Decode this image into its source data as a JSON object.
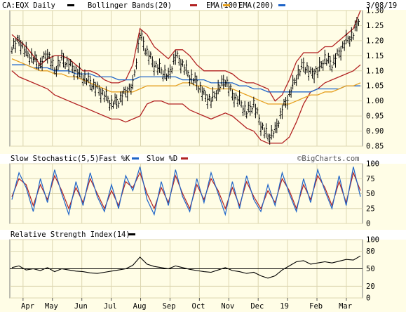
{
  "chart_data": [
    {
      "type": "ohlc",
      "title": "CA:EQX Daily",
      "date_label": "3/08/19",
      "legend": [
        {
          "label": "Bollinger Bands(20)",
          "color": "#b22222"
        },
        {
          "label": "EMA(100)",
          "color": "#e6a020"
        },
        {
          "label": "EMA(200)",
          "color": "#1e64c8"
        }
      ],
      "ylim": [
        0.85,
        1.3
      ],
      "y_ticks": [
        "1.30",
        "1.25",
        "1.20",
        "1.15",
        "1.10",
        "1.05",
        "1.00",
        "0.95",
        "0.90",
        "0.85"
      ],
      "x_tick_labels": [
        "Apr",
        "May",
        "Jun",
        "Jul",
        "Aug",
        "Sep",
        "Oct",
        "Nov",
        "Dec",
        "19",
        "Feb",
        "Mar"
      ],
      "close_series": [
        1.18,
        1.2,
        1.16,
        1.14,
        1.12,
        1.16,
        1.1,
        1.14,
        1.12,
        1.1,
        1.08,
        1.06,
        1.04,
        1.02,
        0.99,
        1.0,
        1.03,
        1.05,
        1.22,
        1.16,
        1.12,
        1.1,
        1.08,
        1.15,
        1.12,
        1.08,
        1.06,
        1.02,
        1.0,
        1.04,
        1.07,
        1.02,
        1.0,
        0.96,
        0.99,
        0.92,
        0.88,
        0.9,
        0.97,
        1.02,
        1.08,
        1.12,
        1.09,
        1.1,
        1.14,
        1.12,
        1.16,
        1.2,
        1.22,
        1.29
      ],
      "bb_upper": [
        1.22,
        1.2,
        1.18,
        1.15,
        1.12,
        1.14,
        1.15,
        1.15,
        1.14,
        1.12,
        1.1,
        1.1,
        1.09,
        1.07,
        1.06,
        1.06,
        1.07,
        1.12,
        1.24,
        1.22,
        1.18,
        1.16,
        1.14,
        1.17,
        1.17,
        1.15,
        1.12,
        1.1,
        1.1,
        1.1,
        1.1,
        1.09,
        1.07,
        1.06,
        1.06,
        1.05,
        1.04,
        1.0,
        1.02,
        1.07,
        1.13,
        1.16,
        1.16,
        1.16,
        1.18,
        1.18,
        1.2,
        1.22,
        1.24,
        1.3
      ],
      "bb_lower": [
        1.1,
        1.08,
        1.07,
        1.06,
        1.05,
        1.04,
        1.02,
        1.01,
        1.0,
        0.99,
        0.98,
        0.97,
        0.96,
        0.95,
        0.94,
        0.94,
        0.93,
        0.94,
        0.95,
        0.99,
        1.0,
        1.0,
        0.99,
        0.99,
        0.99,
        0.97,
        0.96,
        0.95,
        0.94,
        0.95,
        0.96,
        0.95,
        0.93,
        0.91,
        0.9,
        0.87,
        0.86,
        0.86,
        0.86,
        0.88,
        0.93,
        0.99,
        1.03,
        1.04,
        1.06,
        1.07,
        1.08,
        1.09,
        1.1,
        1.12
      ],
      "ema100": [
        1.14,
        1.13,
        1.12,
        1.11,
        1.1,
        1.1,
        1.09,
        1.09,
        1.08,
        1.08,
        1.07,
        1.06,
        1.05,
        1.04,
        1.03,
        1.03,
        1.03,
        1.03,
        1.04,
        1.05,
        1.05,
        1.05,
        1.05,
        1.05,
        1.06,
        1.06,
        1.05,
        1.05,
        1.04,
        1.04,
        1.04,
        1.04,
        1.03,
        1.02,
        1.01,
        1.0,
        0.99,
        0.99,
        0.99,
        0.99,
        1.0,
        1.01,
        1.02,
        1.02,
        1.03,
        1.03,
        1.04,
        1.05,
        1.05,
        1.06
      ],
      "ema200": [
        1.12,
        1.12,
        1.12,
        1.11,
        1.11,
        1.11,
        1.1,
        1.1,
        1.1,
        1.09,
        1.09,
        1.09,
        1.08,
        1.08,
        1.08,
        1.07,
        1.07,
        1.07,
        1.08,
        1.08,
        1.08,
        1.08,
        1.08,
        1.08,
        1.07,
        1.07,
        1.07,
        1.07,
        1.06,
        1.06,
        1.06,
        1.06,
        1.05,
        1.05,
        1.04,
        1.04,
        1.03,
        1.03,
        1.03,
        1.03,
        1.03,
        1.03,
        1.03,
        1.04,
        1.04,
        1.04,
        1.04,
        1.05,
        1.05,
        1.05
      ]
    },
    {
      "type": "line",
      "title": "Slow Stochastic(5,5)",
      "legend": [
        {
          "label": "Fast %K",
          "color": "#1e64c8"
        },
        {
          "label": "Slow %D",
          "color": "#b22222"
        }
      ],
      "ylim": [
        0,
        100
      ],
      "y_ticks": [
        "100",
        "75",
        "50",
        "25",
        "0"
      ],
      "series": [
        {
          "name": "Fast %K",
          "values": [
            40,
            85,
            60,
            20,
            75,
            35,
            90,
            50,
            15,
            70,
            30,
            85,
            45,
            20,
            65,
            25,
            80,
            55,
            95,
            40,
            15,
            70,
            30,
            90,
            45,
            20,
            75,
            35,
            85,
            50,
            15,
            70,
            25,
            80,
            40,
            20,
            65,
            30,
            85,
            50,
            20,
            75,
            35,
            90,
            55,
            25,
            80,
            30,
            95,
            45
          ]
        },
        {
          "name": "Slow %D",
          "values": [
            45,
            75,
            65,
            30,
            65,
            40,
            80,
            55,
            25,
            60,
            35,
            75,
            50,
            25,
            55,
            30,
            70,
            60,
            85,
            50,
            25,
            60,
            35,
            80,
            50,
            25,
            65,
            40,
            75,
            55,
            25,
            60,
            30,
            70,
            45,
            25,
            55,
            35,
            75,
            55,
            25,
            65,
            40,
            80,
            60,
            30,
            70,
            35,
            85,
            55
          ]
        }
      ]
    },
    {
      "type": "line",
      "title": "Relative Strength Index(14)",
      "legend": [
        {
          "label": "",
          "color": "#000000"
        }
      ],
      "ylim": [
        0,
        100
      ],
      "y_ticks": [
        "100",
        "80",
        "50",
        "20",
        "0"
      ],
      "reference_lines": [
        50
      ],
      "series": [
        {
          "name": "RSI",
          "values": [
            52,
            55,
            48,
            50,
            47,
            52,
            45,
            50,
            48,
            46,
            45,
            43,
            42,
            44,
            46,
            48,
            50,
            56,
            70,
            58,
            54,
            52,
            50,
            55,
            52,
            49,
            47,
            45,
            44,
            48,
            52,
            47,
            45,
            42,
            44,
            38,
            34,
            38,
            48,
            55,
            62,
            64,
            58,
            60,
            62,
            60,
            63,
            66,
            65,
            72
          ]
        }
      ]
    }
  ],
  "watermark": "©BigCharts.com"
}
